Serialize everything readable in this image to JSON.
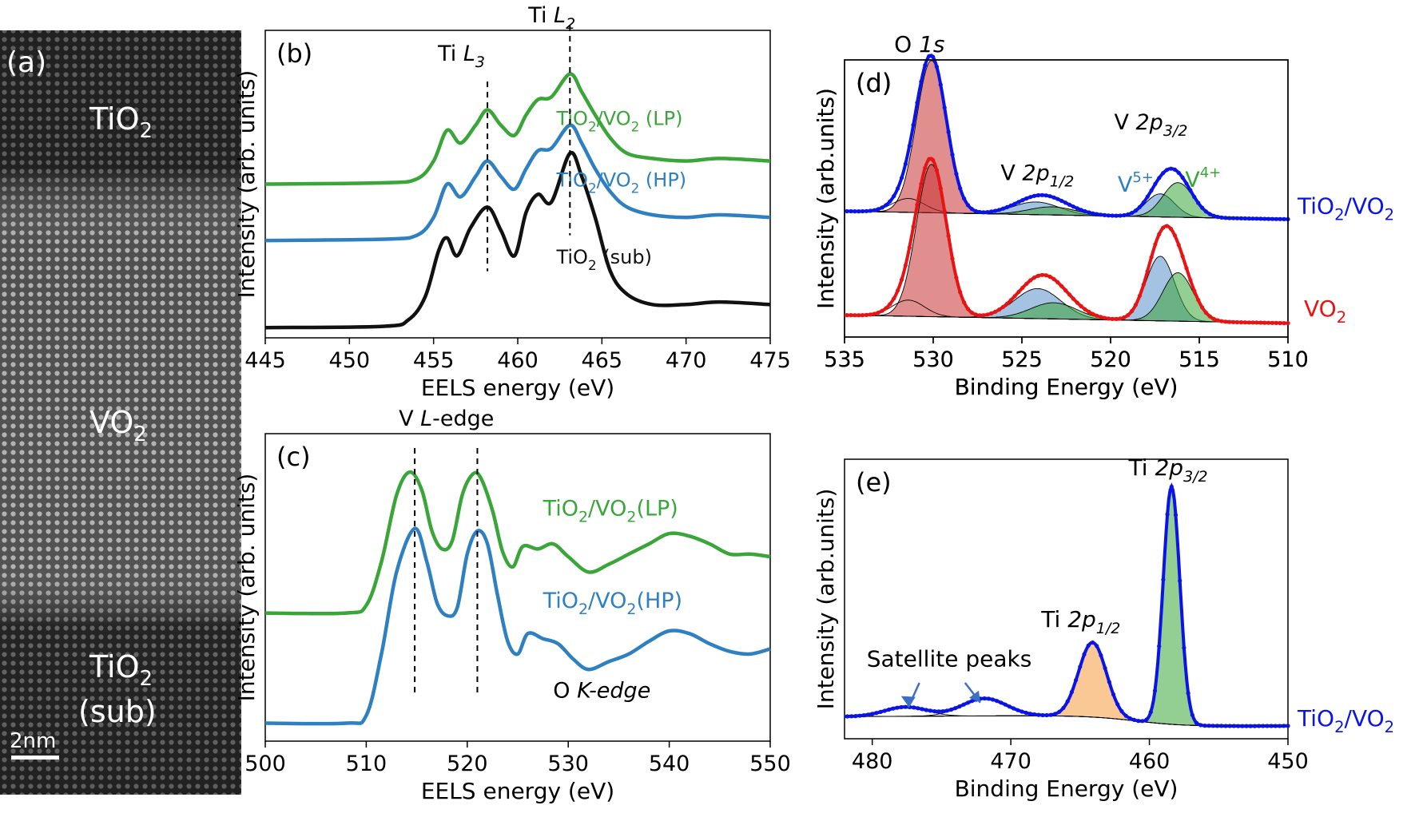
{
  "figure": {
    "panel_a": {
      "label": "(a)",
      "regions": [
        {
          "text": "TiO",
          "sub": "2",
          "line2": ""
        },
        {
          "text": "VO",
          "sub": "2",
          "line2": ""
        },
        {
          "text": "TiO",
          "sub": "2",
          "line2": "(sub)"
        }
      ],
      "scalebar": "2nm"
    }
  },
  "chart_data": [
    {
      "id": "b",
      "type": "line",
      "panel_label": "(b)",
      "xlabel": "EELS energy (eV)",
      "ylabel": "Intensity (arb. units)",
      "xlim": [
        445,
        475
      ],
      "ylim": [
        0,
        12
      ],
      "xticks": [
        445,
        450,
        455,
        460,
        465,
        470,
        475
      ],
      "annotations": [
        {
          "text": "Ti L",
          "sub": "3",
          "x": 458.2
        },
        {
          "text": "Ti L",
          "sub": "2",
          "x": 463.1
        }
      ],
      "series": [
        {
          "name": "TiO2/VO2 (LP)",
          "label": "TiO",
          "label_sub": "2",
          "label_rest": "/VO",
          "label_sub2": "2",
          "label_tail": " (LP)",
          "color": "#3aa63a",
          "x": [
            445,
            452,
            454,
            455,
            455.8,
            456.6,
            457.5,
            458.2,
            459,
            459.8,
            460.5,
            461.2,
            462,
            463.1,
            463.8,
            464.6,
            465.5,
            466.5,
            468,
            470,
            472,
            475
          ],
          "y": [
            6.0,
            6.05,
            6.2,
            6.9,
            8.1,
            7.6,
            8.3,
            8.9,
            8.3,
            7.9,
            8.7,
            9.3,
            9.4,
            10.3,
            9.6,
            8.7,
            7.8,
            7.2,
            7.0,
            6.9,
            7.0,
            6.9
          ]
        },
        {
          "name": "TiO2/VO2 (HP)",
          "label": "TiO",
          "label_sub": "2",
          "label_rest": "/VO",
          "label_sub2": "2",
          "label_tail": " (HP)",
          "color": "#2e80c0",
          "x": [
            445,
            452,
            454,
            455,
            455.8,
            456.6,
            457.5,
            458.2,
            459,
            459.8,
            460.5,
            461.2,
            462,
            463.1,
            463.8,
            464.6,
            465.5,
            466.5,
            468,
            470,
            472,
            475
          ],
          "y": [
            3.8,
            3.85,
            4.0,
            4.7,
            6.0,
            5.5,
            6.3,
            6.9,
            6.3,
            5.8,
            6.6,
            7.3,
            7.4,
            8.3,
            7.6,
            6.6,
            5.7,
            5.1,
            4.8,
            4.7,
            4.8,
            4.7
          ]
        },
        {
          "name": "TiO2 (sub)",
          "label": "TiO",
          "label_sub": "2",
          "label_rest": "",
          "label_sub2": "",
          "label_tail": " (sub)",
          "color": "#111111",
          "x": [
            445,
            452,
            453.5,
            454.5,
            455.3,
            455.8,
            456.4,
            457.2,
            458.2,
            459,
            459.8,
            460.5,
            461.2,
            462,
            463.1,
            463.8,
            464.6,
            465.5,
            466.5,
            468,
            470,
            472,
            475
          ],
          "y": [
            0.4,
            0.45,
            0.7,
            1.6,
            3.4,
            3.9,
            3.2,
            4.3,
            5.1,
            4.2,
            3.2,
            4.9,
            5.6,
            5.3,
            7.2,
            6.3,
            4.7,
            2.6,
            1.7,
            1.3,
            1.3,
            1.4,
            1.3
          ]
        }
      ]
    },
    {
      "id": "c",
      "type": "line",
      "panel_label": "(c)",
      "xlabel": "EELS energy (eV)",
      "ylabel": "Intensity (arb. units)",
      "xlim": [
        500,
        550
      ],
      "ylim": [
        0,
        12
      ],
      "xticks": [
        500,
        510,
        520,
        530,
        540,
        550
      ],
      "annotations": [
        {
          "text": "V ",
          "italic": "L",
          "rest": "-edge",
          "x": [
            514.8,
            521.0
          ]
        },
        {
          "text": "O ",
          "italic": "K-edge"
        }
      ],
      "series": [
        {
          "name": "TiO2/VO2 (LP)",
          "label": "TiO",
          "label_sub": "2",
          "label_rest": "/VO",
          "label_sub2": "2",
          "label_tail": "(LP)",
          "color": "#3aa63a",
          "x": [
            500,
            508,
            510,
            511.5,
            513,
            514.3,
            515.5,
            516.5,
            517.5,
            518.5,
            519.5,
            520.5,
            521.3,
            522.5,
            523.5,
            524.5,
            525.5,
            527,
            528.5,
            530,
            532,
            534,
            536,
            538,
            540,
            542,
            544,
            546,
            548,
            550
          ],
          "y": [
            5.0,
            5.0,
            5.3,
            7.0,
            9.6,
            10.5,
            9.8,
            8.2,
            7.5,
            7.8,
            9.6,
            10.4,
            10.3,
            9.0,
            7.4,
            6.8,
            7.6,
            7.5,
            7.7,
            7.2,
            6.6,
            6.9,
            7.3,
            7.7,
            8.1,
            8.0,
            7.7,
            7.3,
            7.3,
            7.2
          ]
        },
        {
          "name": "TiO2/VO2 (HP)",
          "label": "TiO",
          "label_sub": "2",
          "label_rest": "/VO",
          "label_sub2": "2",
          "label_tail": "(HP)",
          "color": "#2e80c0",
          "x": [
            500,
            508,
            510,
            511.5,
            513,
            514.8,
            516,
            517,
            518,
            519,
            520,
            521,
            522,
            523,
            524,
            525,
            526,
            527.5,
            529,
            530.5,
            532,
            534,
            536,
            538,
            540,
            542,
            544,
            546,
            548,
            550
          ],
          "y": [
            0.7,
            0.7,
            1.0,
            3.4,
            6.6,
            8.3,
            7.0,
            5.4,
            4.9,
            5.2,
            7.3,
            8.2,
            7.7,
            5.7,
            3.9,
            3.4,
            4.2,
            4.0,
            3.8,
            3.2,
            2.8,
            3.1,
            3.4,
            3.9,
            4.3,
            4.2,
            3.8,
            3.5,
            3.4,
            3.6
          ]
        }
      ]
    },
    {
      "id": "d",
      "type": "scatter",
      "panel_label": "(d)",
      "xlabel": "Binding Energy (eV)",
      "ylabel": "Intensity (arb.units)",
      "xlim": [
        535,
        510
      ],
      "ylim": [
        0,
        12
      ],
      "xticks": [
        535,
        530,
        525,
        520,
        515,
        510
      ],
      "annotations": [
        {
          "text": "O ",
          "italic": "1s"
        },
        {
          "text": "V ",
          "italic": "2p",
          "sub": "1/2"
        },
        {
          "text": "V ",
          "italic": "2p",
          "sub": "3/2"
        },
        {
          "text": "V",
          "sup": "5+",
          "color": "#2e80c0"
        },
        {
          "text": "V",
          "sup": "4+",
          "color": "#3aa63a"
        }
      ],
      "series": [
        {
          "name": "TiO2/VO2",
          "label": "TiO",
          "label_sub": "2",
          "label_rest": "/VO",
          "label_sub2": "2",
          "color": "#0a14e6",
          "baseline": 5.1,
          "peaks": [
            {
              "c": 530.1,
              "a": 6.6,
              "w": 0.85
            },
            {
              "c": 531.4,
              "a": 0.6,
              "w": 0.9
            },
            {
              "c": 524.2,
              "a": 0.55,
              "w": 1.3
            },
            {
              "c": 523.3,
              "a": 0.35,
              "w": 1.3
            },
            {
              "c": 517.2,
              "a": 1.0,
              "w": 0.8
            },
            {
              "c": 516.2,
              "a": 1.5,
              "w": 0.85
            }
          ]
        },
        {
          "name": "VO2",
          "label": "VO",
          "label_sub": "2",
          "label_rest": "",
          "label_sub2": "",
          "color": "#e61414",
          "baseline": 0.6,
          "peaks": [
            {
              "c": 530.1,
              "a": 6.6,
              "w": 0.85
            },
            {
              "c": 531.4,
              "a": 0.7,
              "w": 0.9
            },
            {
              "c": 524.1,
              "a": 1.3,
              "w": 1.3
            },
            {
              "c": 523.2,
              "a": 0.7,
              "w": 1.3
            },
            {
              "c": 517.2,
              "a": 2.8,
              "w": 0.8
            },
            {
              "c": 516.2,
              "a": 2.1,
              "w": 0.85
            }
          ]
        }
      ]
    },
    {
      "id": "e",
      "type": "scatter",
      "panel_label": "(e)",
      "xlabel": "Binding Energy (eV)",
      "ylabel": "Intensity (arb.units)",
      "xlim": [
        482,
        450
      ],
      "ylim": [
        0,
        12
      ],
      "xticks": [
        480,
        470,
        460,
        450
      ],
      "annotations": [
        {
          "text": "Ti ",
          "italic": "2p",
          "sub": "3/2"
        },
        {
          "text": "Ti ",
          "italic": "2p",
          "sub": "1/2"
        },
        {
          "text": "Satellite peaks"
        }
      ],
      "series": [
        {
          "name": "TiO2/VO2",
          "label": "TiO",
          "label_sub": "2",
          "label_rest": "/VO",
          "label_sub2": "2",
          "color": "#0a14e6",
          "peaks": [
            {
              "c": 458.4,
              "a": 10.2,
              "w": 0.6
            },
            {
              "c": 464.1,
              "a": 3.2,
              "w": 1.0
            },
            {
              "c": 471.9,
              "a": 0.75,
              "w": 1.6
            },
            {
              "c": 477.6,
              "a": 0.4,
              "w": 1.5
            }
          ]
        }
      ]
    }
  ]
}
